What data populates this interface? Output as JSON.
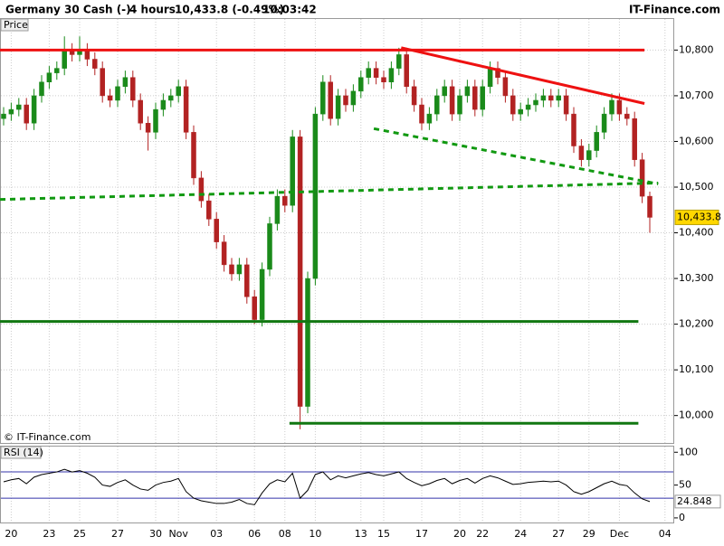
{
  "header": {
    "instrument": "Germany 30 Cash (-)",
    "interval": "4 hours",
    "quote": "10,433.8 (-0.49%)",
    "time": "10:03:42",
    "site": "IT-Finance.com",
    "price_label": "Price",
    "copyright": "© IT-Finance.com"
  },
  "chart_data": [
    {
      "type": "candlestick",
      "categories": [
        null,
        "20",
        null,
        null,
        null,
        null,
        "23",
        null,
        null,
        null,
        "25",
        null,
        null,
        null,
        null,
        "27",
        null,
        null,
        null,
        null,
        "30",
        null,
        null,
        "Nov",
        null,
        null,
        null,
        null,
        "03",
        null,
        null,
        null,
        null,
        "06",
        null,
        null,
        null,
        "08",
        null,
        null,
        null,
        "10",
        null,
        null,
        null,
        null,
        null,
        "13",
        null,
        null,
        "15",
        null,
        null,
        null,
        null,
        "17",
        null,
        null,
        null,
        null,
        "20",
        null,
        null,
        "22",
        null,
        null,
        null,
        null,
        "24",
        null,
        null,
        null,
        null,
        "27",
        null,
        null,
        null,
        "29",
        null,
        null,
        null,
        "Dec",
        null,
        null,
        null,
        null,
        null,
        "04"
      ],
      "open": [
        10650,
        10660,
        10670,
        10680,
        10640,
        10700,
        10730,
        10750,
        10760,
        10800,
        10790,
        10800,
        10780,
        10760,
        10700,
        10690,
        10720,
        10740,
        10690,
        10640,
        10620,
        10670,
        10690,
        10700,
        10720,
        10620,
        10520,
        10470,
        10430,
        10380,
        10330,
        10310,
        10330,
        10260,
        10210,
        10320,
        10420,
        10480,
        10460,
        10610,
        10020,
        10300,
        10660,
        10730,
        10650,
        10700,
        10680,
        10710,
        10740,
        10760,
        10740,
        10730,
        10760,
        10790,
        10720,
        10680,
        10640,
        10660,
        10700,
        10720,
        10660,
        10700,
        10720,
        10670,
        10720,
        10760,
        10740,
        10700,
        10660,
        10670,
        10680,
        10690,
        10700,
        10690,
        10700,
        10660,
        10590,
        10560,
        10580,
        10620,
        10660,
        10690,
        10660,
        10650,
        10560,
        10480,
        null,
        null
      ],
      "high": [
        10675,
        10685,
        10695,
        10695,
        10715,
        10745,
        10765,
        10775,
        10830,
        10815,
        10830,
        10815,
        10795,
        10775,
        10715,
        10735,
        10755,
        10755,
        10705,
        10655,
        10685,
        10705,
        10715,
        10735,
        10735,
        10635,
        10535,
        10485,
        10445,
        10395,
        10345,
        10345,
        10345,
        10275,
        10335,
        10435,
        10495,
        10495,
        10625,
        10625,
        10315,
        10675,
        10745,
        10745,
        10715,
        10715,
        10725,
        10755,
        10775,
        10775,
        10755,
        10775,
        10805,
        10805,
        10735,
        10695,
        10675,
        10715,
        10735,
        10735,
        10715,
        10735,
        10735,
        10735,
        10775,
        10775,
        10755,
        10715,
        10685,
        10695,
        10705,
        10715,
        10715,
        10715,
        10715,
        10675,
        10605,
        10595,
        10635,
        10675,
        10705,
        10705,
        10675,
        10665,
        10575,
        10490,
        null,
        null
      ],
      "low": [
        10635,
        10645,
        10655,
        10625,
        10625,
        10685,
        10715,
        10735,
        10745,
        10775,
        10775,
        10765,
        10745,
        10685,
        10675,
        10675,
        10705,
        10675,
        10625,
        10580,
        10605,
        10655,
        10675,
        10685,
        10605,
        10505,
        10455,
        10415,
        10365,
        10315,
        10295,
        10295,
        10245,
        10200,
        10195,
        10305,
        10405,
        10445,
        10445,
        9970,
        10005,
        10285,
        10645,
        10635,
        10635,
        10665,
        10665,
        10695,
        10725,
        10725,
        10715,
        10715,
        10745,
        10705,
        10665,
        10625,
        10625,
        10645,
        10685,
        10645,
        10645,
        10685,
        10655,
        10655,
        10705,
        10725,
        10685,
        10645,
        10645,
        10655,
        10665,
        10675,
        10675,
        10675,
        10645,
        10575,
        10545,
        10545,
        10565,
        10605,
        10645,
        10645,
        10635,
        10545,
        10465,
        10400,
        null,
        null
      ],
      "close": [
        10660,
        10670,
        10680,
        10640,
        10700,
        10730,
        10750,
        10760,
        10800,
        10790,
        10800,
        10780,
        10760,
        10700,
        10690,
        10720,
        10740,
        10690,
        10640,
        10620,
        10670,
        10690,
        10700,
        10720,
        10620,
        10520,
        10470,
        10430,
        10380,
        10330,
        10310,
        10330,
        10260,
        10210,
        10320,
        10420,
        10480,
        10460,
        10610,
        10020,
        10300,
        10660,
        10730,
        10650,
        10700,
        10680,
        10710,
        10740,
        10760,
        10740,
        10730,
        10760,
        10790,
        10720,
        10680,
        10640,
        10660,
        10700,
        10720,
        10660,
        10700,
        10720,
        10670,
        10720,
        10760,
        10740,
        10700,
        10660,
        10670,
        10680,
        10690,
        10700,
        10690,
        10700,
        10660,
        10590,
        10560,
        10580,
        10620,
        10660,
        10690,
        10660,
        10650,
        10560,
        10480,
        10433.8,
        null,
        null
      ],
      "up_color": "#1a8a1a",
      "down_color": "#b22222",
      "ylim": [
        9940,
        10870
      ],
      "yticks": [
        {
          "value": 10000,
          "label": "10,000"
        },
        {
          "value": 10100,
          "label": "10,100"
        },
        {
          "value": 10200,
          "label": "10,200"
        },
        {
          "value": 10300,
          "label": "10,300"
        },
        {
          "value": 10400,
          "label": "10,400"
        },
        {
          "value": 10500,
          "label": "10,500"
        },
        {
          "value": 10600,
          "label": "10,600"
        },
        {
          "value": 10700,
          "label": "10,700"
        },
        {
          "value": 10800,
          "label": "10,800"
        }
      ],
      "grid": true,
      "last_price": {
        "value": 10433.8,
        "label": "10,433.8"
      },
      "lines": [
        {
          "color": "#ee1111",
          "style": "solid",
          "from": [
            -0.5,
            10800
          ],
          "to": [
            84.3,
            10800
          ]
        },
        {
          "color": "#ee1111",
          "style": "solid",
          "from": [
            52.3,
            10805
          ],
          "to": [
            84.3,
            10683
          ]
        },
        {
          "color": "#119911",
          "style": "dashed",
          "from": [
            48.7,
            10628
          ],
          "to": [
            86.1,
            10507
          ]
        },
        {
          "color": "#119911",
          "style": "dashed",
          "from": [
            -0.5,
            10473
          ],
          "to": [
            86.1,
            10509
          ]
        },
        {
          "color": "#117711",
          "style": "solid",
          "from": [
            -0.5,
            10206
          ],
          "to": [
            83.5,
            10206
          ]
        },
        {
          "color": "#117711",
          "style": "solid",
          "from": [
            37.6,
            9983
          ],
          "to": [
            83.5,
            9983
          ]
        }
      ]
    },
    {
      "type": "line",
      "title": "RSI (14)",
      "color": "#000000",
      "values": [
        55,
        58,
        60,
        52,
        62,
        66,
        68,
        70,
        74,
        70,
        72,
        68,
        62,
        50,
        48,
        54,
        58,
        50,
        44,
        42,
        50,
        54,
        56,
        60,
        40,
        30,
        26,
        24,
        22,
        22,
        24,
        28,
        22,
        20,
        38,
        52,
        58,
        55,
        68,
        30,
        42,
        66,
        70,
        58,
        64,
        61,
        64,
        67,
        69,
        66,
        64,
        67,
        70,
        60,
        54,
        49,
        52,
        57,
        60,
        52,
        57,
        60,
        53,
        60,
        64,
        61,
        56,
        51,
        52,
        54,
        55,
        56,
        55,
        56,
        50,
        40,
        36,
        40,
        46,
        52,
        56,
        51,
        49,
        38,
        29,
        24.848,
        null,
        null
      ],
      "ylim": [
        -7,
        110
      ],
      "yticks": [
        0,
        50,
        100
      ],
      "levels": [
        30,
        70
      ],
      "level_color": "#3333aa"
    }
  ]
}
